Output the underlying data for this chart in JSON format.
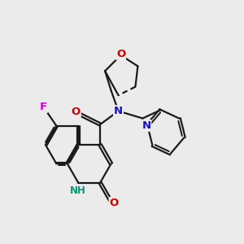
{
  "bg_color": "#ebebeb",
  "bond_color": "#1a1a1a",
  "bond_lw": 1.6,
  "dbl_off": 0.06,
  "atom_colors": {
    "O": "#cc0000",
    "N_blue": "#1111cc",
    "N_teal": "#009977",
    "F": "#cc00cc",
    "C": "#1a1a1a"
  },
  "fs": 9.5,
  "fs_nh": 8.5,
  "xlim": [
    0,
    10
  ],
  "ylim": [
    0,
    10
  ]
}
